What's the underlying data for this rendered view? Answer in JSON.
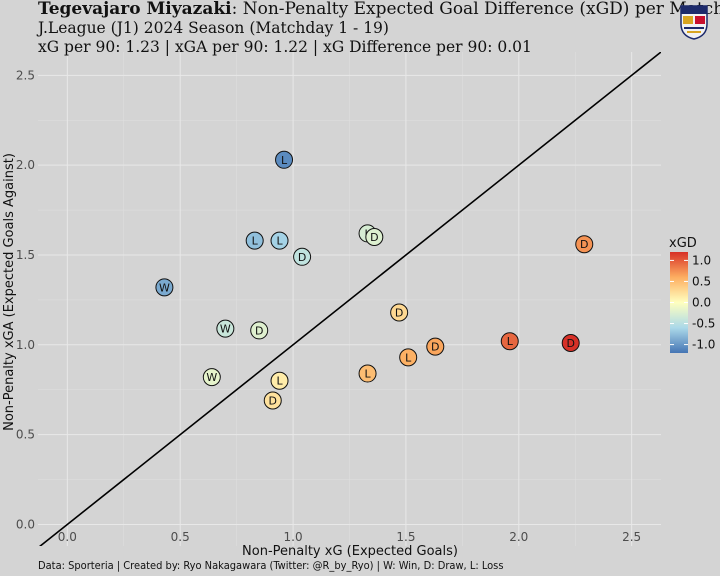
{
  "header": {
    "team_name": "Tegevajaro Miyazaki",
    "title_rest": ": Non-Penalty Expected Goal Difference (xGD) per Match",
    "subtitle_line1": "J.League (J1) 2024 Season (Matchday 1 - 19)",
    "subtitle_line2": "xG per 90: 1.23 | xGA per 90: 1.22 | xG Difference per 90: 0.01"
  },
  "caption": "Data: Sporteria | Created by: Ryo Nakagawara (Twitter: @R_by_Ryo) | W: Win, D: Draw, L: Loss",
  "colors": {
    "background": "#d4d4d4",
    "grid": "#e6e6e6",
    "scale_low": "#4575b4",
    "scale_mid": "#ffffbf",
    "scale_high": "#d73027"
  },
  "chart_data": {
    "type": "scatter",
    "xlabel": "Non-Penalty xG (Expected Goals)",
    "ylabel": "Non-Penalty xGA (Expected Goals Against)",
    "xlim": [
      -0.13,
      2.63
    ],
    "ylim": [
      -0.12,
      2.63
    ],
    "x_ticks": [
      0.0,
      0.5,
      1.0,
      1.5,
      2.0,
      2.5
    ],
    "y_ticks": [
      0.0,
      0.5,
      1.0,
      1.5,
      2.0,
      2.5
    ],
    "x_tick_labels": [
      "0.0",
      "0.5",
      "1.0",
      "1.5",
      "2.0",
      "2.5"
    ],
    "y_tick_labels": [
      "0.0",
      "0.5",
      "1.0",
      "1.5",
      "2.0",
      "2.5"
    ],
    "grid": true,
    "reference_line": "y = x",
    "legend": {
      "title": "xGD",
      "placement": "right",
      "range": [
        -1.2,
        1.2
      ],
      "breaks": [
        1.0,
        0.5,
        0.0,
        -0.5,
        -1.0
      ],
      "labels": [
        "1.0",
        "0.5",
        "0.0",
        "-0.5",
        "-1.0"
      ]
    },
    "points": [
      {
        "x": 0.96,
        "y": 2.03,
        "result": "L"
      },
      {
        "x": 0.83,
        "y": 1.58,
        "result": "L"
      },
      {
        "x": 0.94,
        "y": 1.58,
        "result": "L"
      },
      {
        "x": 1.04,
        "y": 1.49,
        "result": "D"
      },
      {
        "x": 1.33,
        "y": 1.62,
        "result": "L"
      },
      {
        "x": 1.36,
        "y": 1.6,
        "result": "D"
      },
      {
        "x": 0.43,
        "y": 1.32,
        "result": "W"
      },
      {
        "x": 0.7,
        "y": 1.09,
        "result": "W"
      },
      {
        "x": 0.85,
        "y": 1.08,
        "result": "D"
      },
      {
        "x": 0.64,
        "y": 0.82,
        "result": "W"
      },
      {
        "x": 0.94,
        "y": 0.8,
        "result": "L"
      },
      {
        "x": 0.91,
        "y": 0.69,
        "result": "D"
      },
      {
        "x": 1.47,
        "y": 1.18,
        "result": "D"
      },
      {
        "x": 1.63,
        "y": 0.99,
        "result": "D"
      },
      {
        "x": 1.51,
        "y": 0.93,
        "result": "L"
      },
      {
        "x": 1.33,
        "y": 0.84,
        "result": "L"
      },
      {
        "x": 1.96,
        "y": 1.02,
        "result": "L"
      },
      {
        "x": 2.23,
        "y": 1.01,
        "result": "D"
      },
      {
        "x": 2.29,
        "y": 1.56,
        "result": "D"
      }
    ]
  }
}
